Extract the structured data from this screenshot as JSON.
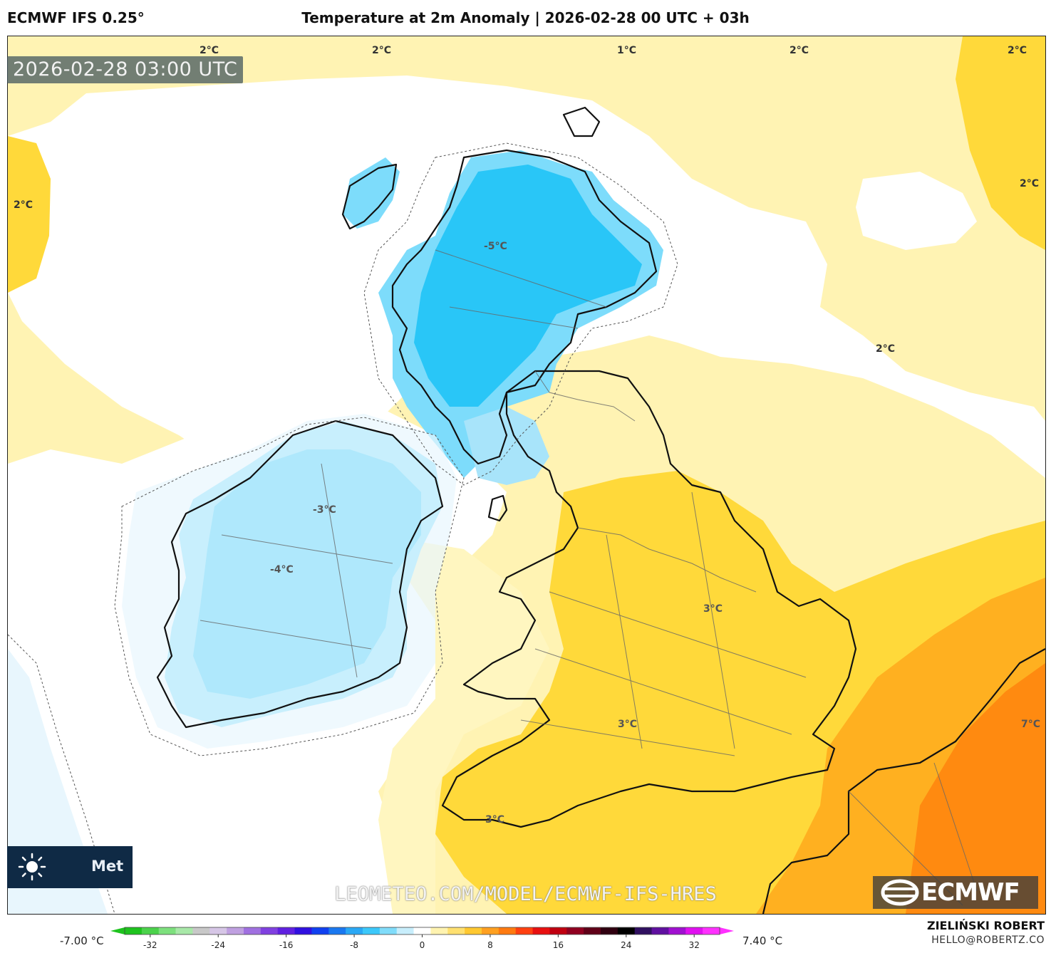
{
  "header": {
    "model": "ECMWF IFS 0.25°",
    "title": "Temperature at 2m Anomaly | 2026-02-28 00 UTC + 03h"
  },
  "timestamp": "2026-02-28 03:00 UTC",
  "isotherm_labels": [
    {
      "text": "2°C"
    },
    {
      "text": "2°C"
    },
    {
      "text": "1°C"
    },
    {
      "text": "2°C"
    },
    {
      "text": "2°C"
    },
    {
      "text": "2°C"
    },
    {
      "text": "2°C"
    },
    {
      "text": "2°C"
    },
    {
      "text": "-5°C"
    },
    {
      "text": "-3°C"
    },
    {
      "text": "-4°C"
    },
    {
      "text": "3°C"
    },
    {
      "text": "3°C"
    },
    {
      "text": "3°C"
    },
    {
      "text": "7°C"
    }
  ],
  "branding": {
    "meteo_label": "Met",
    "watermark": "LEOMETEO.COM/MODEL/ECMWF-IFS-HRES",
    "ecmwf_logo": "ECMWF",
    "sun_icon": "sun-icon"
  },
  "colorbar": {
    "min_label": "-7.00 °C",
    "max_label": "7.40 °C",
    "ticks": [
      "-32",
      "-24",
      "-16",
      "-8",
      "0",
      "8",
      "16",
      "24",
      "32"
    ],
    "tick_values": [
      -32,
      -24,
      -16,
      -8,
      0,
      8,
      16,
      24,
      32
    ],
    "range": [
      -35,
      35
    ],
    "colors": [
      "#1ec31e",
      "#4bd24b",
      "#7de07d",
      "#a8e8a8",
      "#c8c8c8",
      "#d6c6e6",
      "#bfa0e0",
      "#a070e0",
      "#8040e0",
      "#6020e0",
      "#3010e0",
      "#1040f0",
      "#1a78f0",
      "#2aa8f5",
      "#3cc8fa",
      "#80dcfa",
      "#c8eefc",
      "#ffffff",
      "#fff3b0",
      "#ffe070",
      "#ffc830",
      "#ffa020",
      "#ff7a10",
      "#ff4010",
      "#e81010",
      "#c00010",
      "#900020",
      "#600018",
      "#300010",
      "#000000",
      "#301060",
      "#6010a0",
      "#a010d0",
      "#e010f0",
      "#ff30ff"
    ]
  },
  "footer": {
    "author": "ZIELIŃSKI ROBERT",
    "email": "HELLO@ROBERTZ.CO"
  }
}
